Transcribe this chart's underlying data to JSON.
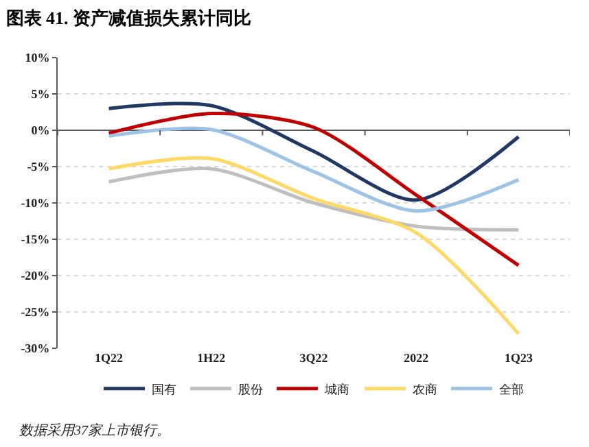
{
  "chart_data": {
    "type": "line",
    "title": "图表 41. 资产减值损失累计同比",
    "categories": [
      "1Q22",
      "1H22",
      "3Q22",
      "2022",
      "1Q23"
    ],
    "series": [
      {
        "name": "国有",
        "color": "#1f3864",
        "values": [
          3.0,
          3.4,
          -2.9,
          -9.6,
          -0.9
        ]
      },
      {
        "name": "股份",
        "color": "#bfbfbf",
        "values": [
          -7.1,
          -5.3,
          -10.0,
          -13.2,
          -13.7
        ]
      },
      {
        "name": "城商",
        "color": "#c00000",
        "values": [
          -0.4,
          2.3,
          0.4,
          -8.9,
          -18.6
        ]
      },
      {
        "name": "农商",
        "color": "#ffd966",
        "values": [
          -5.3,
          -3.9,
          -9.4,
          -14.1,
          -28.0
        ]
      },
      {
        "name": "全部",
        "color": "#9dc3e6",
        "values": [
          -0.8,
          0.1,
          -5.7,
          -11.1,
          -6.8
        ]
      }
    ],
    "ylim": [
      -30,
      10
    ],
    "yticks": [
      {
        "value": -30,
        "label": "-30%"
      },
      {
        "value": -25,
        "label": "-25%"
      },
      {
        "value": -20,
        "label": "-20%"
      },
      {
        "value": -15,
        "label": "-15%"
      },
      {
        "value": -10,
        "label": "-10%"
      },
      {
        "value": -5,
        "label": "-5%"
      },
      {
        "value": 0,
        "label": "0%"
      },
      {
        "value": 5,
        "label": "5%"
      },
      {
        "value": 10,
        "label": "10%"
      }
    ],
    "grid": "y",
    "legend": "bottom",
    "marker": "none",
    "line_style": "solid",
    "annotations": [
      "数据采用37家上市银行。"
    ]
  }
}
